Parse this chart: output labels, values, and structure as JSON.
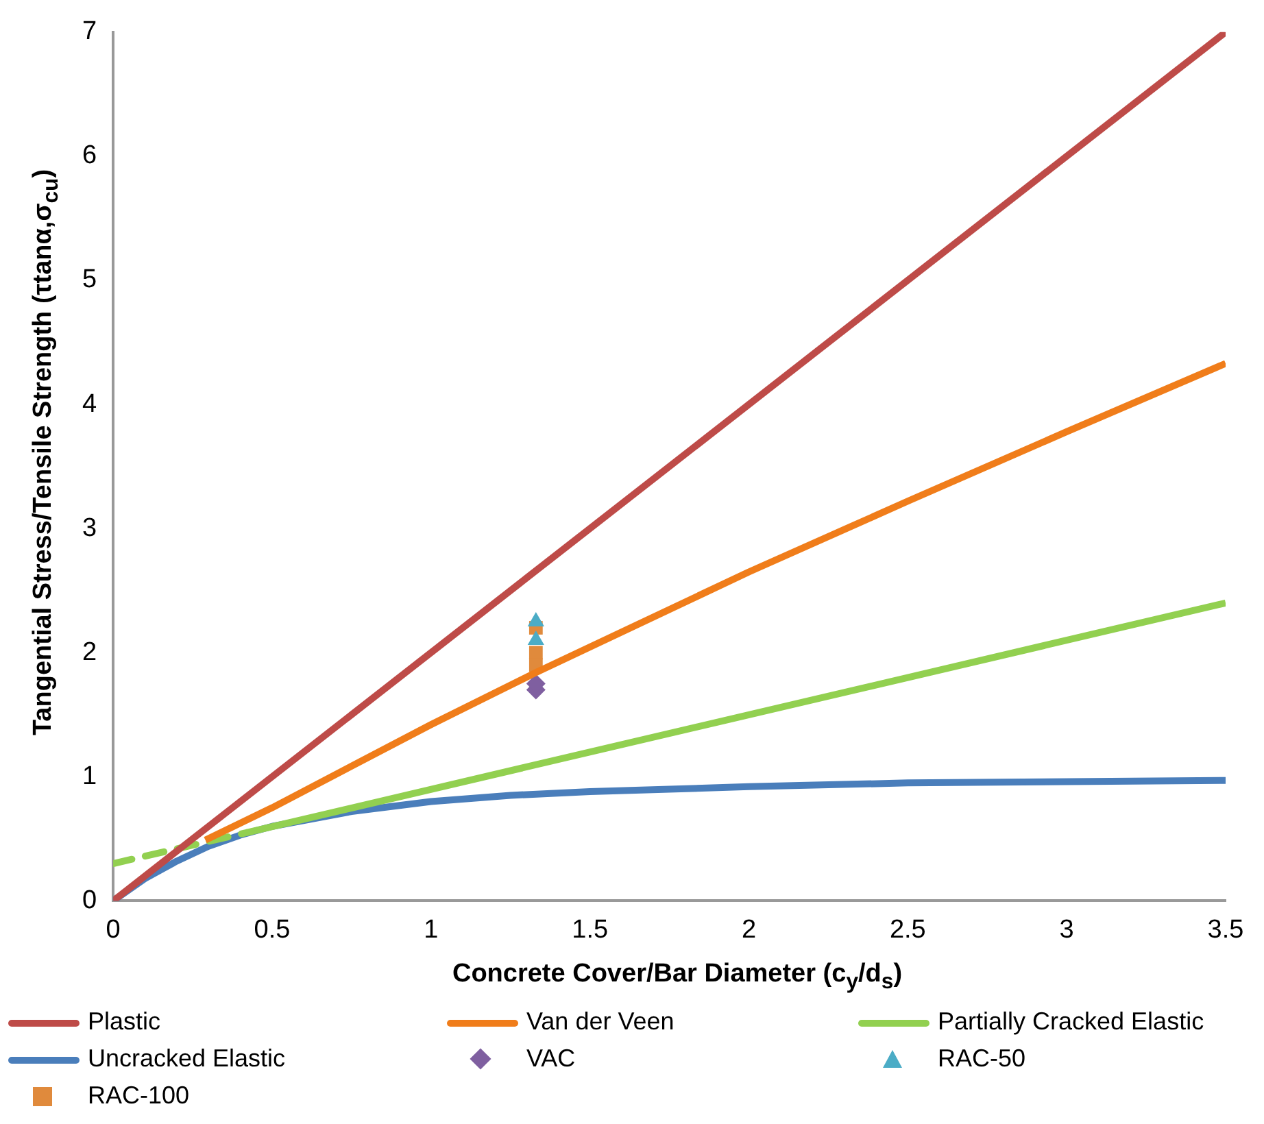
{
  "chart_data": {
    "type": "line",
    "xlabel": "Concrete Cover/Bar Diameter (c$_{y}$/d$_{s}$)",
    "ylabel": "Tangential Stress/Tensile Strength (τtanα,σ$_{cu}$)",
    "xlim": [
      0,
      3.5
    ],
    "xticks": [
      0,
      0.5,
      1,
      1.5,
      2,
      2.5,
      3,
      3.5
    ],
    "ylim": [
      0,
      7
    ],
    "yticks": [
      0,
      1,
      2,
      3,
      4,
      5,
      6,
      7
    ],
    "grid": false,
    "legend": "bottom",
    "marker": "none",
    "line_style": "solid",
    "series": [
      {
        "name": "Plastic",
        "color": "#be4b48",
        "x": [
          0,
          3.5
        ],
        "values": [
          0,
          7
        ]
      },
      {
        "name": "Van der Veen",
        "color": "#f07d1a",
        "x": [
          0.29,
          0.5,
          1,
          1.33,
          2,
          2.5,
          3,
          3.5
        ],
        "values": [
          0.49,
          0.75,
          1.42,
          1.84,
          2.65,
          3.22,
          3.78,
          4.33
        ]
      },
      {
        "name": "Partially Cracked Elastic",
        "color": "#92d050",
        "x": [
          0.42,
          3.5
        ],
        "values": [
          0.55,
          2.4
        ]
      },
      {
        "color": "#92d050",
        "line_style": "dashed",
        "x": [
          0,
          0.42
        ],
        "values": [
          0.3,
          0.55
        ]
      },
      {
        "name": "Uncracked Elastic",
        "color": "#4a7ebb",
        "x": [
          0,
          0.1,
          0.2,
          0.3,
          0.4,
          0.5,
          0.75,
          1,
          1.25,
          1.5,
          2,
          2.5,
          3,
          3.5
        ],
        "values": [
          0,
          0.18,
          0.32,
          0.44,
          0.53,
          0.6,
          0.72,
          0.8,
          0.85,
          0.88,
          0.92,
          0.95,
          0.96,
          0.97
        ]
      },
      {
        "name": "VAC",
        "type": "scatter",
        "marker": "diamond",
        "color": "#7f5fa0",
        "x": [
          1.33,
          1.33
        ],
        "values": [
          1.7,
          1.75
        ]
      },
      {
        "name": "RAC-50",
        "type": "scatter",
        "marker": "triangle",
        "color": "#4bacc6",
        "x": [
          1.33,
          1.33
        ],
        "values": [
          2.25,
          2.1
        ]
      },
      {
        "name": "RAC-100",
        "type": "scatter",
        "marker": "square",
        "color": "#e08a3c",
        "x": [
          1.33,
          1.33,
          1.33
        ],
        "values": [
          2.2,
          2.0,
          1.9
        ]
      }
    ]
  }
}
